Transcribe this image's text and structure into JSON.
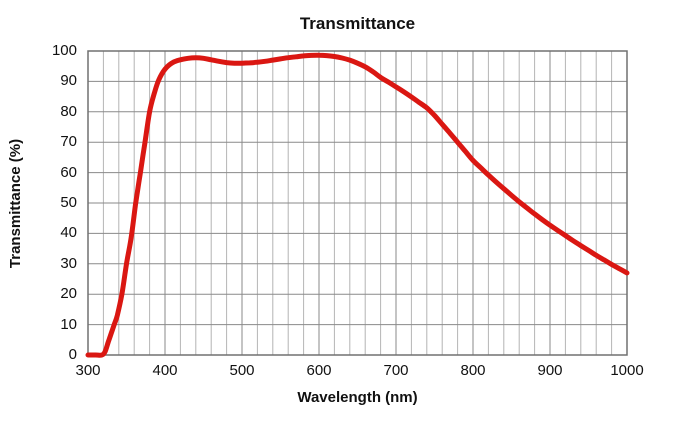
{
  "style": {
    "curve_color": "#da1712",
    "grid_minor_color": "#b4b4b4",
    "grid_major_color": "#8a8a8a",
    "border_color": "#707070",
    "text_color": "#111111",
    "background": "#ffffff"
  },
  "chart_data": {
    "type": "line",
    "title": "Transmittance",
    "xlabel": "Wavelength (nm)",
    "ylabel": "Transmittance (%)",
    "xlim": [
      300,
      1000
    ],
    "ylim": [
      0,
      100
    ],
    "x_ticks": [
      300,
      400,
      500,
      600,
      700,
      800,
      900,
      1000
    ],
    "y_ticks": [
      0,
      10,
      20,
      30,
      40,
      50,
      60,
      70,
      80,
      90,
      100
    ],
    "grid": {
      "x_minor_step": 20,
      "y_major_step": 10,
      "vertical_minor": true,
      "horizontal_minor": false
    },
    "legend": "none",
    "series": [
      {
        "name": "Transmittance",
        "color": "#da1712",
        "x": [
          300,
          310,
          318,
          322,
          326,
          330,
          334,
          338,
          344,
          350,
          356,
          362,
          368,
          374,
          380,
          386,
          392,
          400,
          410,
          420,
          430,
          440,
          450,
          460,
          470,
          480,
          490,
          500,
          510,
          520,
          530,
          540,
          550,
          560,
          570,
          580,
          590,
          600,
          610,
          620,
          630,
          640,
          650,
          660,
          670,
          680,
          690,
          700,
          710,
          720,
          730,
          740,
          750,
          760,
          770,
          780,
          790,
          800,
          810,
          820,
          830,
          840,
          850,
          860,
          870,
          880,
          890,
          900,
          910,
          920,
          930,
          940,
          950,
          960,
          970,
          980,
          990,
          1000
        ],
        "y": [
          0,
          0,
          0,
          1,
          4,
          7,
          10,
          13,
          20,
          30,
          38.5,
          50,
          60,
          70,
          80,
          86,
          90.5,
          94,
          96.2,
          97.1,
          97.6,
          97.8,
          97.6,
          97.1,
          96.6,
          96.2,
          96.0,
          96.0,
          96.1,
          96.3,
          96.6,
          97.0,
          97.4,
          97.8,
          98.1,
          98.4,
          98.55,
          98.6,
          98.5,
          98.2,
          97.7,
          97.0,
          96.0,
          94.8,
          93.2,
          91.3,
          89.8,
          88.2,
          86.6,
          84.9,
          83.1,
          81.3,
          78.8,
          75.9,
          73.0,
          70.0,
          67.0,
          64.0,
          61.6,
          59.2,
          56.9,
          54.7,
          52.5,
          50.4,
          48.4,
          46.4,
          44.5,
          42.7,
          41.0,
          39.3,
          37.6,
          36.0,
          34.4,
          32.8,
          31.3,
          29.8,
          28.4,
          27.0
        ]
      }
    ]
  }
}
